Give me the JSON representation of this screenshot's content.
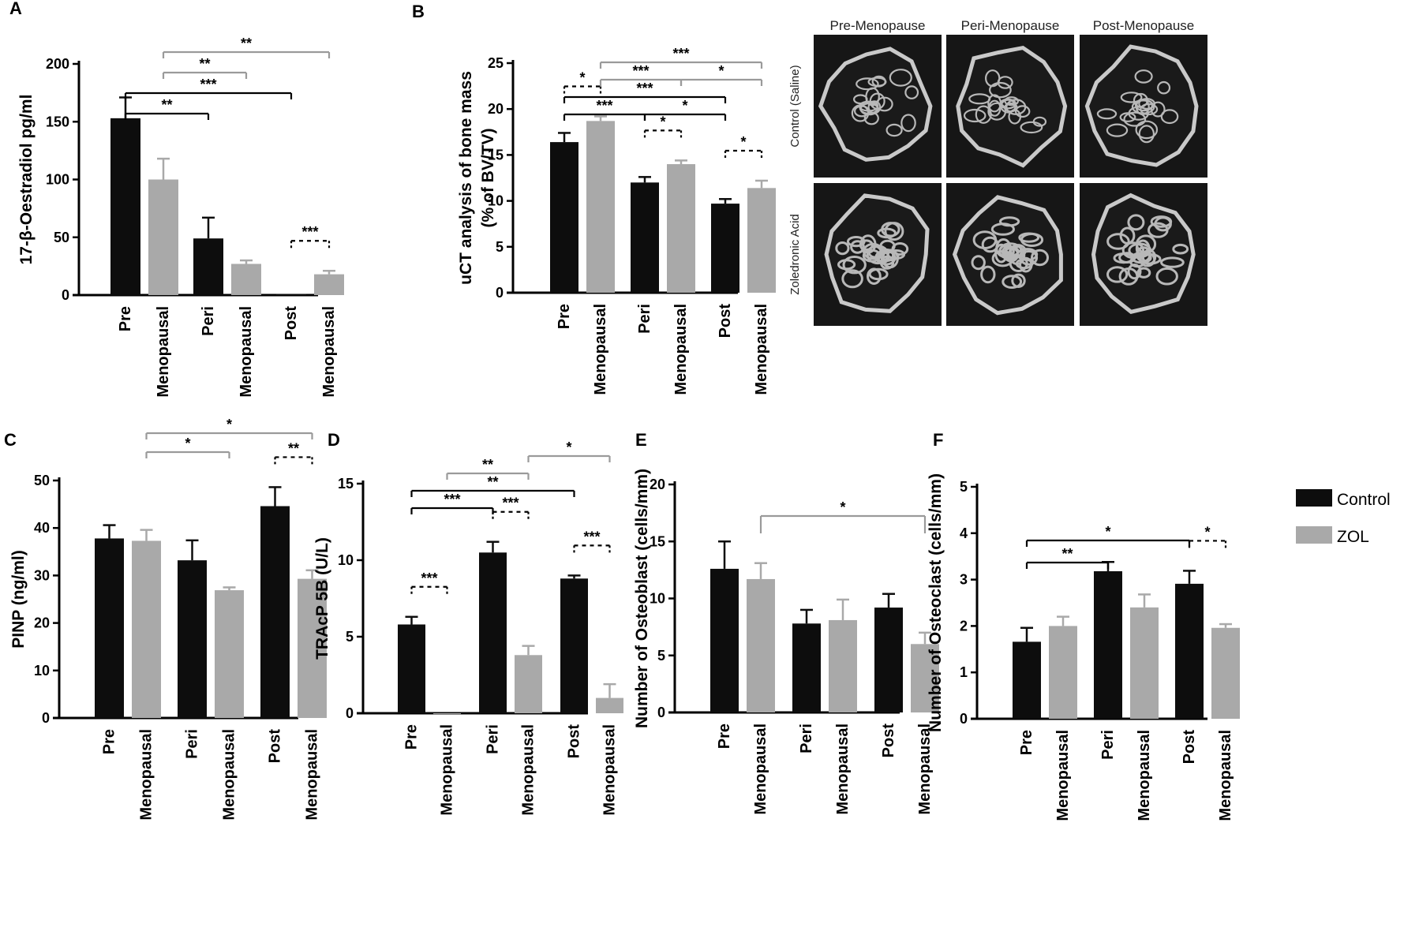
{
  "colors": {
    "control": "#0d0d0d",
    "zol": "#a9a9a9",
    "axis": "#000000",
    "bracket_gray": "#9a9a9a"
  },
  "legend": {
    "control": "Control",
    "zol": "ZOL"
  },
  "micro_ct": {
    "columns": [
      "Pre-Menopause",
      "Peri-Menopause",
      "Post-Menopause"
    ],
    "rows": [
      "Control (Saline)",
      "Zoledronic Acid"
    ]
  },
  "chart_data": [
    {
      "panel": "A",
      "type": "bar",
      "ylabel": "17-β-Oestradiol pg/ml",
      "xlabel": "",
      "ylim": [
        0,
        200
      ],
      "yticks": [
        0,
        50,
        100,
        150,
        200
      ],
      "categories": [
        [
          "Pre",
          "Menopausal"
        ],
        [
          "Peri",
          "Menopausal"
        ],
        [
          "Post",
          "Menopausal"
        ]
      ],
      "series": [
        {
          "name": "Control",
          "values": [
            153,
            49,
            1
          ],
          "errors": [
            18,
            18,
            0
          ]
        },
        {
          "name": "ZOL",
          "values": [
            100,
            27,
            18
          ],
          "errors": [
            18,
            3,
            3
          ]
        }
      ],
      "significance": [
        {
          "from": 0,
          "to": 1,
          "level": 1,
          "label": "**",
          "group_color": "black"
        },
        {
          "from": 0,
          "to": 2,
          "level": 2,
          "label": "***",
          "group_color": "black"
        },
        {
          "from": 0,
          "to": 1,
          "level": 3,
          "label": "**",
          "group_color": "gray"
        },
        {
          "from": 0,
          "to": 2,
          "level": 4,
          "label": "**",
          "group_color": "gray"
        }
      ],
      "pair_sig": [
        {
          "cat": 2,
          "label": "***"
        }
      ]
    },
    {
      "panel": "B",
      "type": "bar",
      "ylabel": [
        "uCT analysis of bone mass",
        "(% of BV/TV)"
      ],
      "xlabel": "",
      "ylim": [
        0,
        25
      ],
      "yticks": [
        0,
        5,
        10,
        15,
        20,
        25
      ],
      "categories": [
        [
          "Pre",
          "Menopausal"
        ],
        [
          "Peri",
          "Menopausal"
        ],
        [
          "Post",
          "Menopausal"
        ]
      ],
      "series": [
        {
          "name": "Control",
          "values": [
            16.4,
            12.0,
            9.7
          ],
          "errors": [
            1.0,
            0.6,
            0.5
          ]
        },
        {
          "name": "ZOL",
          "values": [
            18.7,
            14.0,
            11.4
          ],
          "errors": [
            0.5,
            0.4,
            0.8
          ]
        }
      ],
      "significance": [
        {
          "from": 0,
          "to": 1,
          "level": 1,
          "label": "***",
          "group_color": "black"
        },
        {
          "from": 1,
          "to": 2,
          "level": 1,
          "label": "*",
          "group_color": "black"
        },
        {
          "from": 0,
          "to": 2,
          "level": 2,
          "label": "***",
          "group_color": "black"
        },
        {
          "from": 0,
          "to": 1,
          "level": 3,
          "label": "***",
          "group_color": "gray"
        },
        {
          "from": 1,
          "to": 2,
          "level": 3,
          "label": "*",
          "group_color": "gray"
        },
        {
          "from": 0,
          "to": 2,
          "level": 4,
          "label": "***",
          "group_color": "gray"
        }
      ],
      "pair_sig": [
        {
          "cat": 0,
          "label": "*"
        },
        {
          "cat": 1,
          "label": "*"
        },
        {
          "cat": 2,
          "label": "*"
        }
      ]
    },
    {
      "panel": "C",
      "type": "bar",
      "ylabel": "PINP (ng/ml)",
      "xlabel": "",
      "ylim": [
        0,
        50
      ],
      "yticks": [
        0,
        10,
        20,
        30,
        40,
        50
      ],
      "categories": [
        [
          "Pre",
          "Menopausal"
        ],
        [
          "Peri",
          "Menopausal"
        ],
        [
          "Post",
          "Menopausal"
        ]
      ],
      "series": [
        {
          "name": "Control",
          "values": [
            37.8,
            33.2,
            44.6
          ],
          "errors": [
            2.8,
            4.2,
            4.0
          ]
        },
        {
          "name": "ZOL",
          "values": [
            37.3,
            26.9,
            29.3
          ],
          "errors": [
            2.3,
            0.6,
            1.8
          ]
        }
      ],
      "significance": [
        {
          "from": 0,
          "to": 1,
          "level": 1,
          "label": "*",
          "group_color": "gray"
        },
        {
          "from": 0,
          "to": 2,
          "level": 2,
          "label": "*",
          "group_color": "gray"
        }
      ],
      "pair_sig": [
        {
          "cat": 2,
          "label": "**"
        }
      ]
    },
    {
      "panel": "D",
      "type": "bar",
      "ylabel": "TRAcP 5B (U/L)",
      "xlabel": "",
      "ylim": [
        0,
        15
      ],
      "yticks": [
        0,
        5,
        10,
        15
      ],
      "categories": [
        [
          "Pre",
          "Menopausal"
        ],
        [
          "Peri",
          "Menopausal"
        ],
        [
          "Post",
          "Menopausal"
        ]
      ],
      "series": [
        {
          "name": "Control",
          "values": [
            5.8,
            10.5,
            8.8
          ],
          "errors": [
            0.5,
            0.7,
            0.2
          ]
        },
        {
          "name": "ZOL",
          "values": [
            0,
            3.8,
            1.0
          ],
          "errors": [
            0,
            0.6,
            0.9
          ]
        }
      ],
      "significance": [
        {
          "from": 0,
          "to": 1,
          "level": 1,
          "label": "***",
          "group_color": "black"
        },
        {
          "from": 0,
          "to": 2,
          "level": 2,
          "label": "**",
          "group_color": "black"
        },
        {
          "from": 0,
          "to": 1,
          "level": 3,
          "label": "**",
          "group_color": "gray"
        },
        {
          "from": 1,
          "to": 2,
          "level": 4,
          "label": "*",
          "group_color": "gray"
        }
      ],
      "pair_sig": [
        {
          "cat": 0,
          "label": "***"
        },
        {
          "cat": 1,
          "label": "***"
        },
        {
          "cat": 2,
          "label": "***"
        }
      ]
    },
    {
      "panel": "E",
      "type": "bar",
      "ylabel": "Number of Osteoblast (cells/mm)",
      "xlabel": "",
      "ylim": [
        0,
        20
      ],
      "yticks": [
        0,
        5,
        10,
        15,
        20
      ],
      "categories": [
        [
          "Pre",
          "Menopausal"
        ],
        [
          "Peri",
          "Menopausal"
        ],
        [
          "Post",
          "Menopausal"
        ]
      ],
      "series": [
        {
          "name": "Control",
          "values": [
            12.6,
            7.8,
            9.2
          ],
          "errors": [
            2.4,
            1.2,
            1.2
          ]
        },
        {
          "name": "ZOL",
          "values": [
            11.7,
            8.1,
            6.0
          ],
          "errors": [
            1.4,
            1.8,
            1.0
          ]
        }
      ],
      "significance": [
        {
          "from": 0,
          "to": 2,
          "level": 1,
          "label": "*",
          "group_color": "gray",
          "drop_ends": true
        }
      ],
      "pair_sig": []
    },
    {
      "panel": "F",
      "type": "bar",
      "ylabel": "Number of Osteoclast (cells/mm)",
      "xlabel": "",
      "ylim": [
        0,
        5
      ],
      "yticks": [
        0,
        1,
        2,
        3,
        4,
        5
      ],
      "categories": [
        [
          "Pre",
          "Menopausal"
        ],
        [
          "Peri",
          "Menopausal"
        ],
        [
          "Post",
          "Menopausal"
        ]
      ],
      "series": [
        {
          "name": "Control",
          "values": [
            1.66,
            3.18,
            2.91
          ],
          "errors": [
            0.3,
            0.2,
            0.28
          ]
        },
        {
          "name": "ZOL",
          "values": [
            2.0,
            2.4,
            1.96
          ],
          "errors": [
            0.2,
            0.28,
            0.08
          ]
        }
      ],
      "significance": [
        {
          "from": 0,
          "to": 1,
          "level": 1,
          "label": "**",
          "group_color": "black"
        },
        {
          "from": 0,
          "to": 2,
          "level": 2,
          "label": "*",
          "group_color": "black"
        }
      ],
      "pair_sig": [
        {
          "cat": 2,
          "label": "*"
        }
      ]
    }
  ]
}
